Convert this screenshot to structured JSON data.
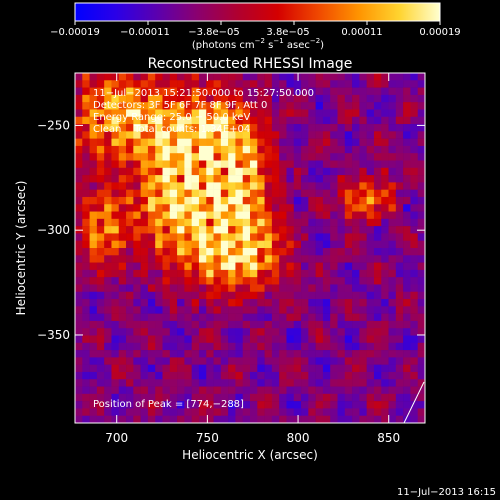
{
  "chart_data": {
    "type": "heatmap",
    "title": "Reconstructed RHESSI Image",
    "xlabel": "Heliocentric X (arcsec)",
    "ylabel": "Heliocentric Y (arcsec)",
    "xlim": [
      677,
      870
    ],
    "ylim": [
      -392,
      -225
    ],
    "x_ticks": [
      700,
      750,
      800,
      850
    ],
    "y_ticks": [
      -250,
      -300,
      -350
    ],
    "x_tick_labels": [
      "700",
      "750",
      "800",
      "850"
    ],
    "y_tick_labels": [
      "−250",
      "−300",
      "−350"
    ],
    "colorbar": {
      "range": [
        -0.00019,
        0.00019
      ],
      "tick_labels": [
        "−0.00019",
        "−0.00011",
        "−3.8e−05",
        "3.8e−05",
        "0.00011",
        "0.00019"
      ],
      "unit_main": "(photons cm",
      "unit_sup1": "−2",
      "unit_mid1": " s",
      "unit_sup2": "−1",
      "unit_mid2": " asec",
      "unit_sup3": "−2",
      "unit_end": ")",
      "colormap": [
        "#0000ff",
        "#2a00e8",
        "#5a00b0",
        "#8a0070",
        "#b00030",
        "#d40000",
        "#f04800",
        "#ff9400",
        "#ffd430",
        "#ffffd0"
      ]
    },
    "annotations": {
      "line1": "11−Jul−2013 15:21:50.000 to 15:27:50.000",
      "line2": "Detectors: 3F 5F 6F 7F 8F 9F, Att 0",
      "line3": "Energy Range: 25.0 − 50.0 keV",
      "line4": "Clean    Total counts: 1.34E+04",
      "peak": "Position of Peak = [774,−288]"
    },
    "sources": [
      {
        "x": 758,
        "y": -285,
        "sx": 18,
        "sy": 26,
        "amp": 1.0
      },
      {
        "x": 748,
        "y": -262,
        "sx": 20,
        "sy": 18,
        "amp": 0.85
      },
      {
        "x": 700,
        "y": -245,
        "sx": 22,
        "sy": 16,
        "amp": 0.85
      },
      {
        "x": 692,
        "y": -300,
        "sx": 10,
        "sy": 14,
        "amp": 0.75
      },
      {
        "x": 838,
        "y": -285,
        "sx": 12,
        "sy": 8,
        "amp": 0.7
      },
      {
        "x": 772,
        "y": -312,
        "sx": 18,
        "sy": 12,
        "amp": 0.6
      },
      {
        "x": 725,
        "y": -292,
        "sx": 14,
        "sy": 20,
        "amp": 0.55
      }
    ],
    "footer_date": "11−Jul−2013 16:15"
  }
}
